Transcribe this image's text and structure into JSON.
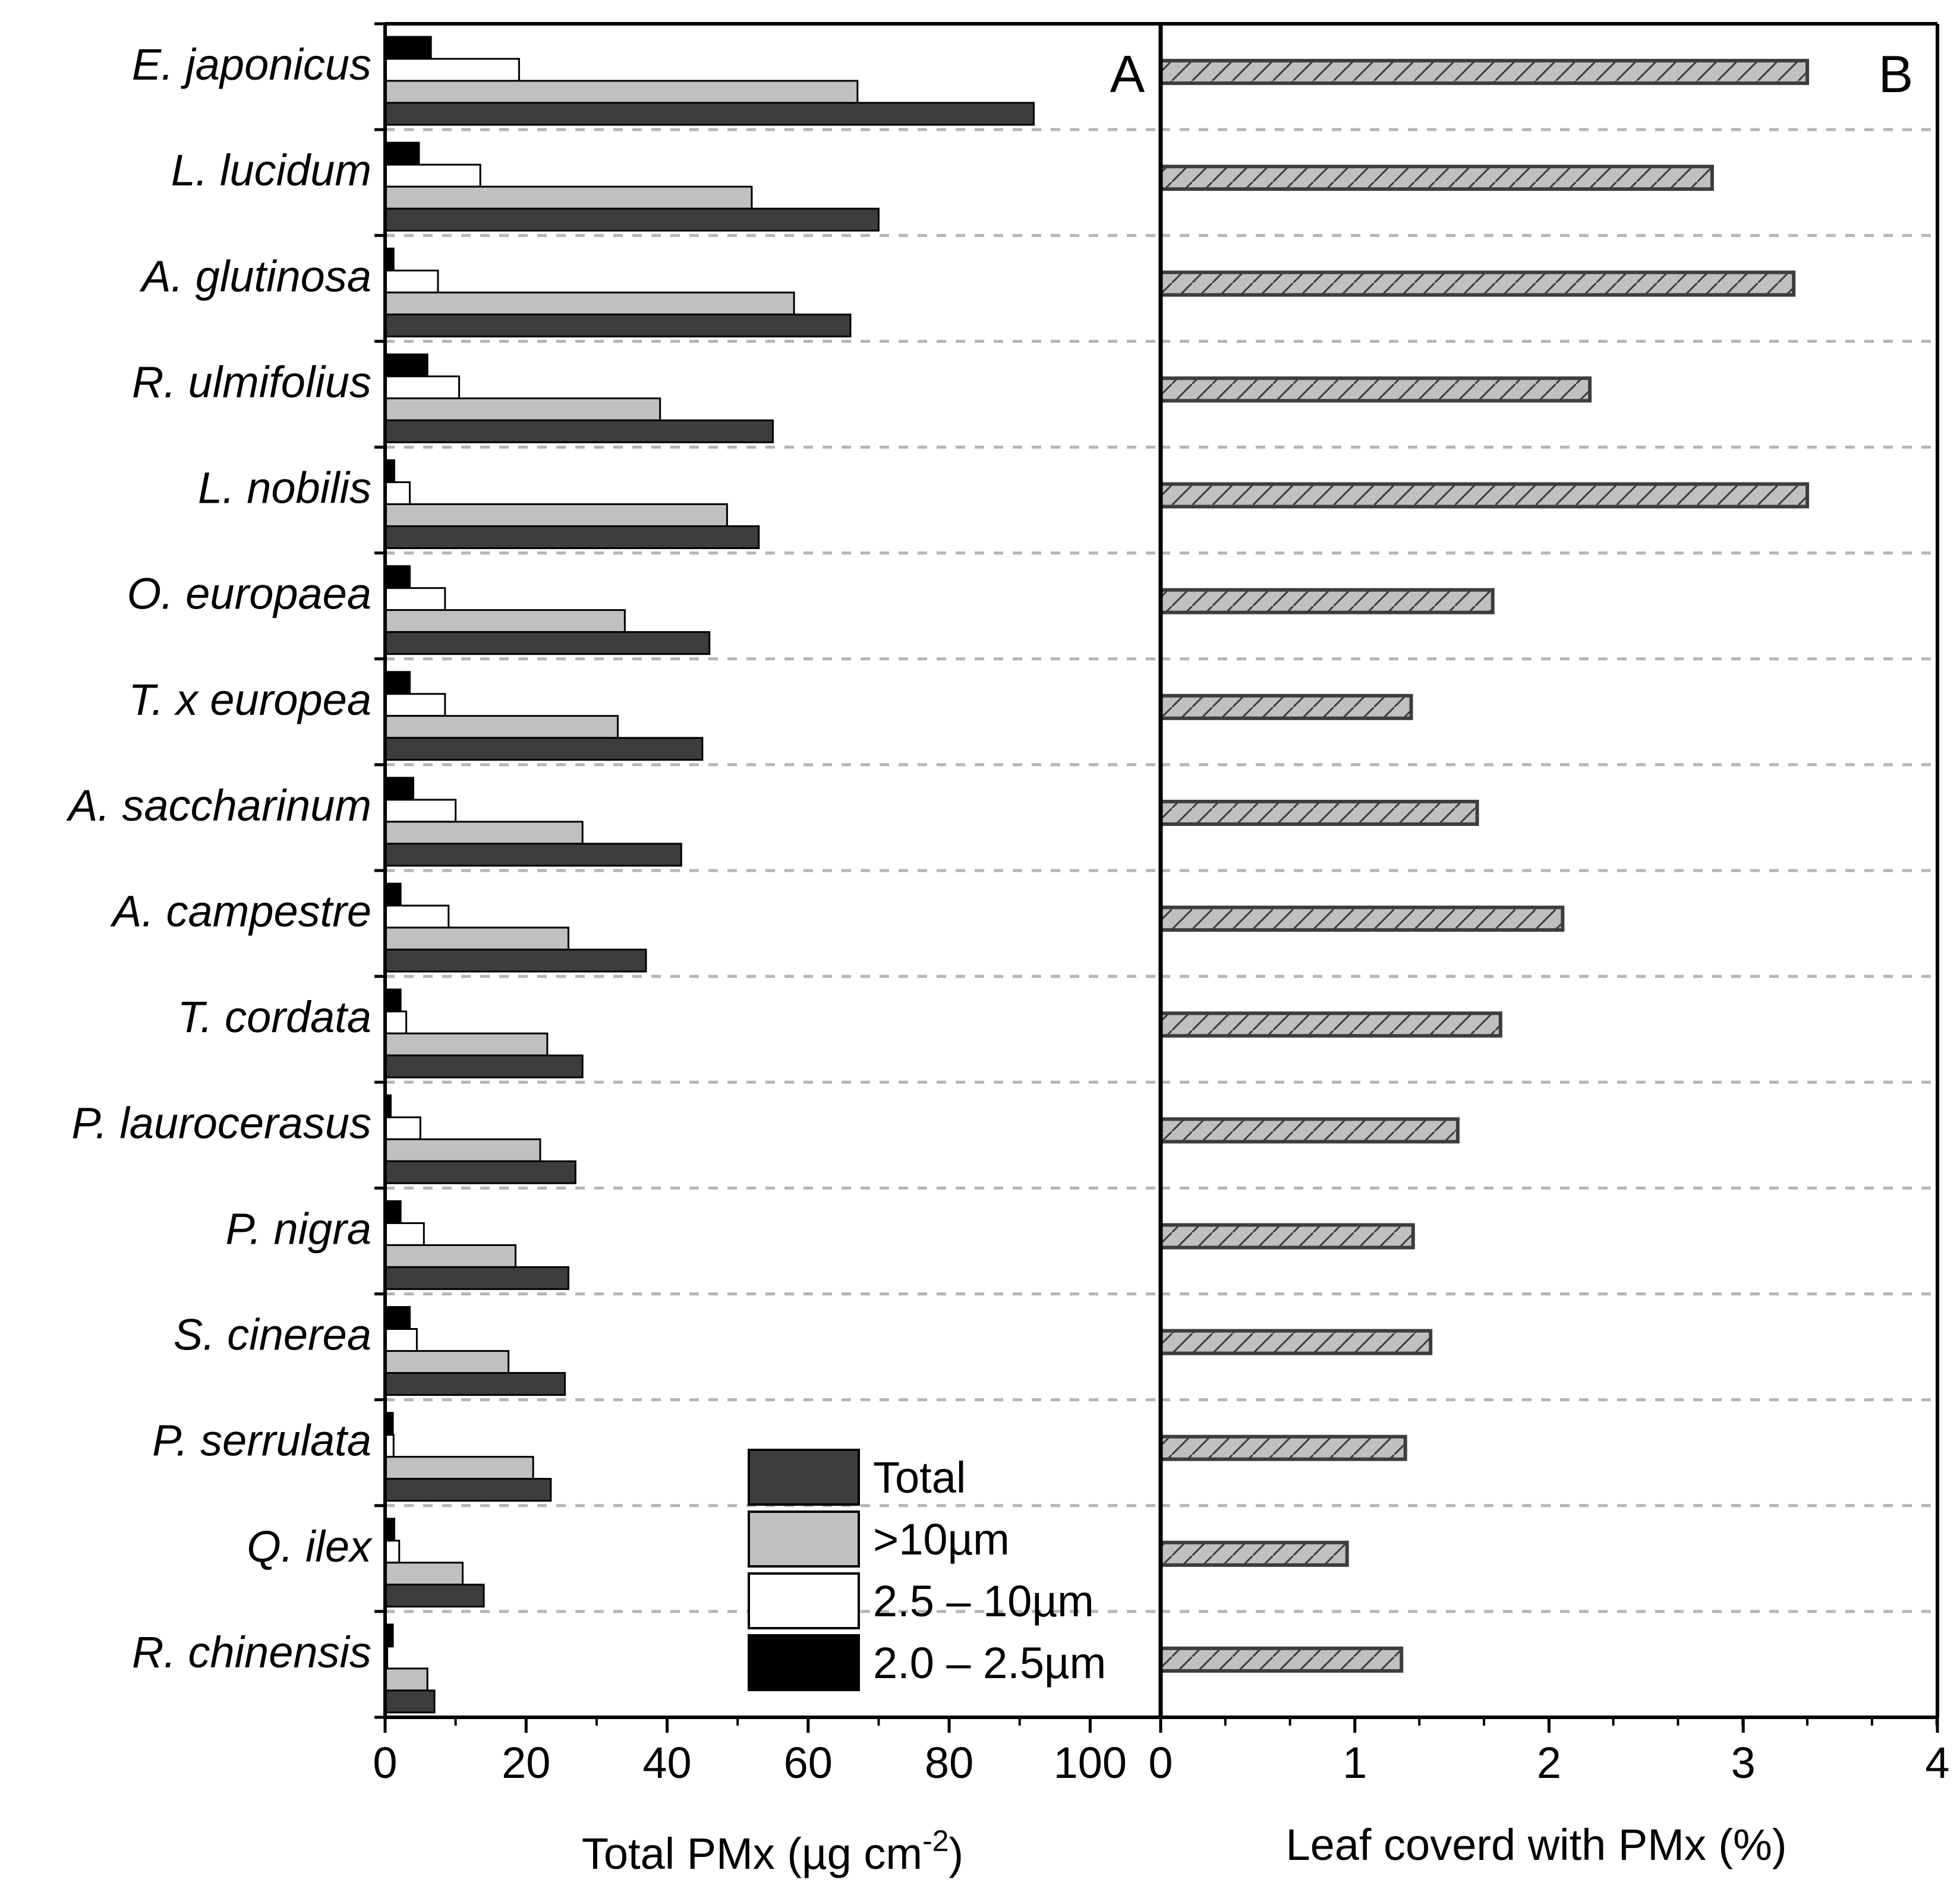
{
  "chart_data": [
    {
      "panel": "A",
      "type": "bar",
      "orientation": "horizontal",
      "title": "",
      "panel_label": "A",
      "xlabel": "Total PMx (µg cm",
      "xlabel_superscript": "-2",
      "xlabel_suffix": ")",
      "ylabel": "",
      "xlim": [
        0,
        110
      ],
      "xticks": [
        "0",
        "20",
        "40",
        "60",
        "80",
        "100"
      ],
      "xtick_values": [
        0,
        20,
        40,
        60,
        80,
        100
      ],
      "grid": "dashed horizontal separators between species",
      "legend_position": "bottom-right",
      "categories": [
        "E. japonicus",
        "L. lucidum",
        "A. glutinosa",
        "R. ulmifolius",
        "L. nobilis",
        "O. europaea",
        "T. x europea",
        "A. saccharinum",
        "A. campestre",
        "T. cordata",
        "P. laurocerasus",
        "P. nigra",
        "S. cinerea",
        "P. serrulata",
        "Q. ilex",
        "R. chinensis"
      ],
      "series": [
        {
          "name": "Total",
          "color": "#3d3d3d",
          "values": [
            92,
            70,
            66,
            55,
            53,
            46,
            45,
            42,
            37,
            28,
            27,
            26,
            25.5,
            23.5,
            14,
            7
          ]
        },
        {
          "name": ">10µm",
          "color": "#c0c0c0",
          "values": [
            67,
            52,
            58,
            39,
            48.5,
            34,
            33,
            28,
            26,
            23,
            22,
            18.5,
            17.5,
            21,
            11,
            6
          ]
        },
        {
          "name": "2.5 – 10µm",
          "color": "#ffffff",
          "values": [
            19,
            13.5,
            7.5,
            10.5,
            3.5,
            8.5,
            8.5,
            10,
            9,
            3,
            5,
            5.5,
            4.5,
            1.2,
            2,
            0.3
          ]
        },
        {
          "name": "2.0 – 2.5µm",
          "color": "#000000",
          "values": [
            6.5,
            4.8,
            1.2,
            6,
            1.3,
            3.5,
            3.5,
            4,
            2.2,
            2.2,
            0.8,
            2.2,
            3.5,
            1.1,
            1.3,
            1.1
          ]
        }
      ]
    },
    {
      "panel": "B",
      "type": "bar",
      "orientation": "horizontal",
      "title": "",
      "panel_label": "B",
      "xlabel": "Leaf coverd with PMx (%)",
      "ylabel": "",
      "xlim": [
        0,
        4
      ],
      "xticks": [
        "0",
        "1",
        "2",
        "3",
        "4"
      ],
      "xtick_values": [
        0,
        1,
        2,
        3,
        4
      ],
      "grid": "dashed horizontal separators between species",
      "categories": [
        "E. japonicus",
        "L. lucidum",
        "A. glutinosa",
        "R. ulmifolius",
        "L. nobilis",
        "O. europaea",
        "T. x europea",
        "A. saccharinum",
        "A. campestre",
        "T. cordata",
        "P. laurocerasus",
        "P. nigra",
        "S. cinerea",
        "P. serrulata",
        "Q. ilex",
        "R. chinensis"
      ],
      "series": [
        {
          "name": "Leaf covered with PMx",
          "color": "#c0c0c0",
          "hatch": "diagonal",
          "values": [
            3.33,
            2.84,
            3.26,
            2.21,
            3.33,
            1.71,
            1.29,
            1.63,
            2.07,
            1.75,
            1.53,
            1.3,
            1.39,
            1.26,
            0.96,
            1.24
          ]
        }
      ]
    }
  ]
}
